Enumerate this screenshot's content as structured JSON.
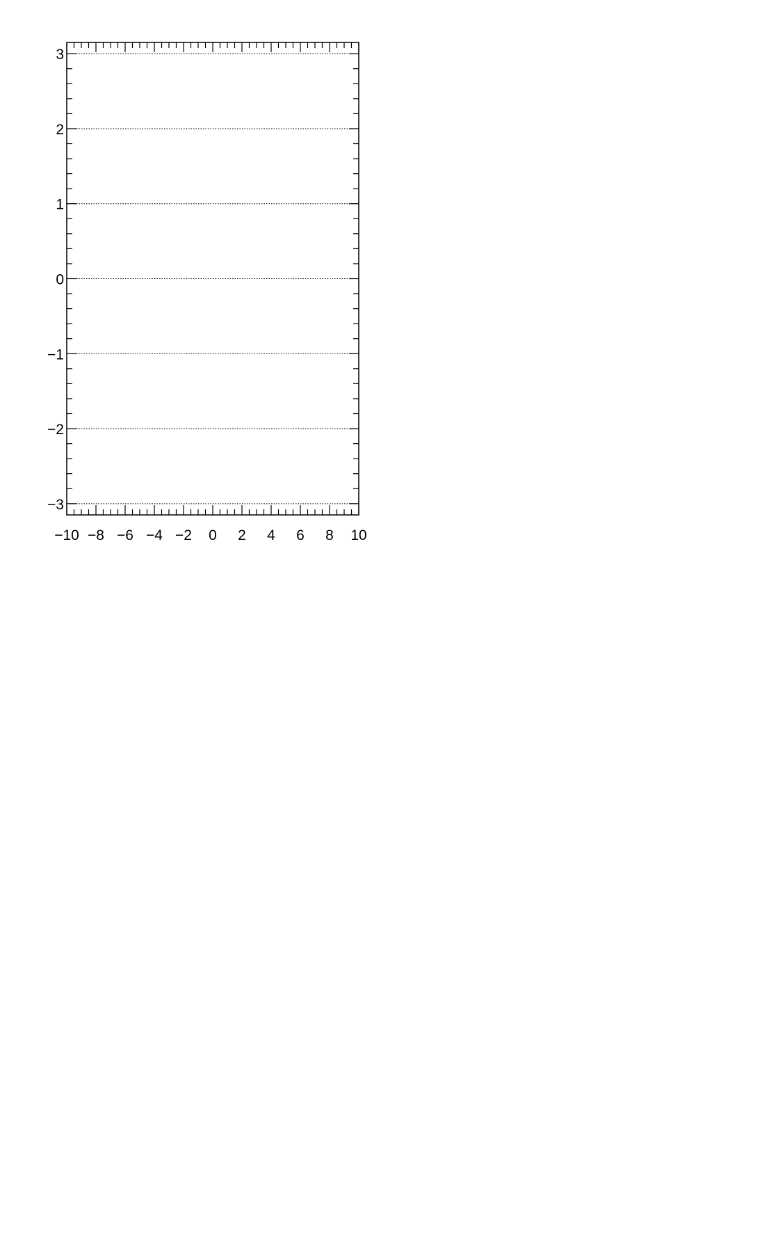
{
  "chart_data": {
    "type": "line",
    "title": "",
    "xlabel": "",
    "ylabel": "",
    "xlim": [
      -10,
      10
    ],
    "ylim": [
      -3.15,
      3.15
    ],
    "x_ticks": [
      -10,
      -8,
      -6,
      -4,
      -2,
      0,
      2,
      4,
      6,
      8,
      10
    ],
    "x_tick_labels": [
      "−10",
      "−8",
      "−6",
      "−4",
      "−2",
      "0",
      "2",
      "4",
      "6",
      "8",
      "10"
    ],
    "x_minor_step": 0.5,
    "y_ticks": [
      -3,
      -2,
      -1,
      0,
      1,
      2,
      3
    ],
    "y_tick_labels": [
      "−3",
      "−2",
      "−1",
      "0",
      "1",
      "2",
      "3"
    ],
    "y_minor_step": 0.2,
    "grid": {
      "x": false,
      "y": true,
      "style": "dotted"
    },
    "series": []
  }
}
